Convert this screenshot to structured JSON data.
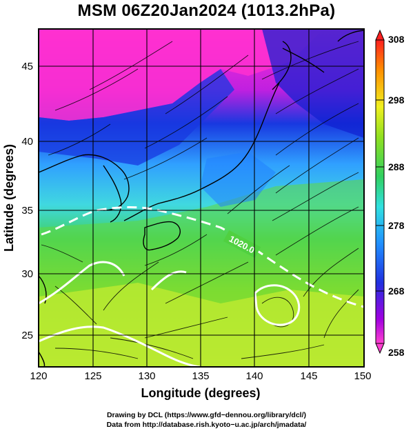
{
  "title": "MSM 06Z20Jan2024 (1013.2hPa)",
  "xlabel": "Longitude (degrees)",
  "ylabel": "Latitude  (degrees)",
  "x_ticks": [
    "120",
    "125",
    "130",
    "135",
    "140",
    "145",
    "150"
  ],
  "y_ticks": [
    "25",
    "30",
    "35",
    "40",
    "45"
  ],
  "colorbar": {
    "labels": [
      "308",
      "298",
      "288",
      "278",
      "268",
      "258"
    ],
    "colors": [
      "#ff2020",
      "#ff8000",
      "#ffd000",
      "#c8f040",
      "#40e040",
      "#20d0c0",
      "#2080ff",
      "#0020c0",
      "#8000d0",
      "#ff30c0"
    ]
  },
  "isobar_label": "1020.0",
  "credit_line1": "Drawing by DCL (https://www.gfd−dennou.org/library/dcl/)",
  "credit_line2": "Data from http://database.rish.kyoto−u.ac.jp/arch/jmadata/",
  "colors": {
    "background": "#ffffff",
    "cold": "#ff30d0",
    "cool": "#1030e0",
    "mild": "#30c0ff",
    "warm": "#60e040",
    "hot": "#e8f020",
    "isobar": "#ffffff",
    "coastline": "#000000"
  }
}
